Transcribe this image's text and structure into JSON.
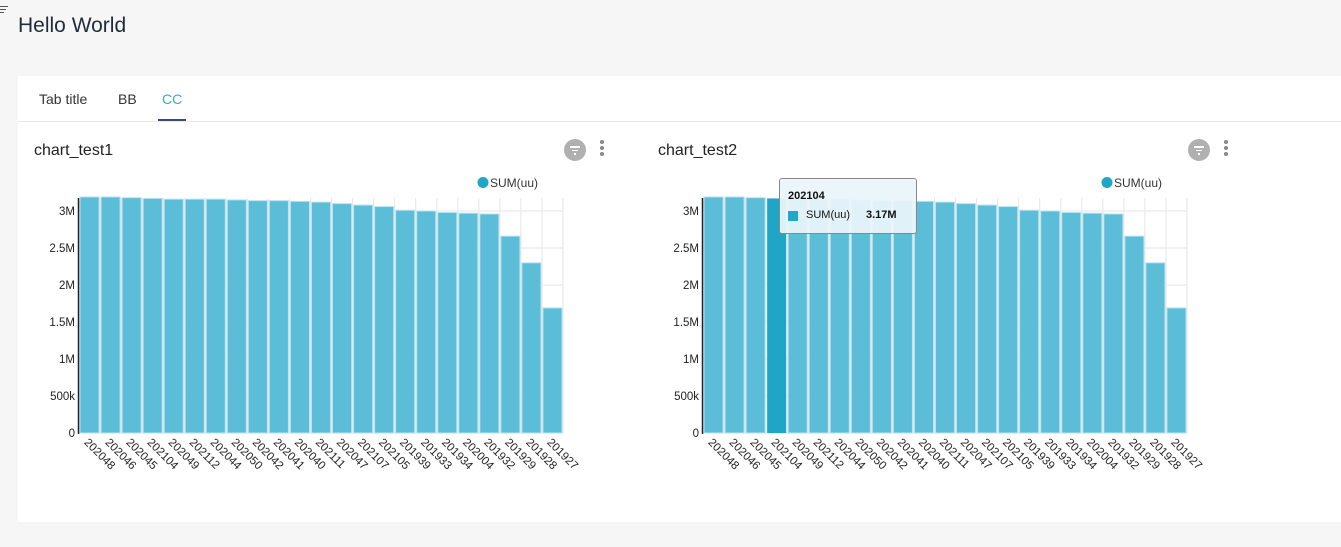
{
  "page": {
    "title": "Hello World"
  },
  "tabs": [
    {
      "label": "Tab title",
      "active": false
    },
    {
      "label": "BB",
      "active": false
    },
    {
      "label": "CC",
      "active": true
    }
  ],
  "colors": {
    "bar": "#5bbdd8",
    "bar_highlight": "#1fa6c7",
    "accent": "#3ea6c8",
    "legend_dot": "#1fa6c7"
  },
  "chart_data": [
    {
      "type": "bar",
      "title": "chart_test1",
      "legend": {
        "label": "SUM(uu)",
        "position": "top-right"
      },
      "categories": [
        "202048",
        "202046",
        "202045",
        "202104",
        "202049",
        "202112",
        "202044",
        "202050",
        "202042",
        "202041",
        "202040",
        "202111",
        "202047",
        "202107",
        "202105",
        "201939",
        "201933",
        "201934",
        "202004",
        "201932",
        "201929",
        "201928",
        "201927"
      ],
      "series": [
        {
          "name": "SUM(uu)",
          "values": [
            3190000,
            3190000,
            3180000,
            3170000,
            3160000,
            3160000,
            3160000,
            3150000,
            3140000,
            3140000,
            3130000,
            3120000,
            3100000,
            3080000,
            3060000,
            3010000,
            3000000,
            2980000,
            2970000,
            2960000,
            2660000,
            2300000,
            1690000
          ]
        }
      ],
      "ylim": [
        0,
        3200000
      ],
      "yticks": [
        {
          "value": 0,
          "label": "0"
        },
        {
          "value": 500000,
          "label": "500k"
        },
        {
          "value": 1000000,
          "label": "1M"
        },
        {
          "value": 1500000,
          "label": "1.5M"
        },
        {
          "value": 2000000,
          "label": "2M"
        },
        {
          "value": 2500000,
          "label": "2.5M"
        },
        {
          "value": 3000000,
          "label": "3M"
        }
      ],
      "xlabel": "",
      "ylabel": "",
      "grid": true
    },
    {
      "type": "bar",
      "title": "chart_test2",
      "legend": {
        "label": "SUM(uu)",
        "position": "top-right"
      },
      "categories": [
        "202048",
        "202046",
        "202045",
        "202104",
        "202049",
        "202112",
        "202044",
        "202050",
        "202042",
        "202041",
        "202040",
        "202111",
        "202047",
        "202107",
        "202105",
        "201939",
        "201933",
        "201934",
        "202004",
        "201932",
        "201929",
        "201928",
        "201927"
      ],
      "series": [
        {
          "name": "SUM(uu)",
          "values": [
            3190000,
            3190000,
            3180000,
            3170000,
            3160000,
            3160000,
            3160000,
            3150000,
            3140000,
            3140000,
            3130000,
            3120000,
            3100000,
            3080000,
            3060000,
            3010000,
            3000000,
            2980000,
            2970000,
            2960000,
            2660000,
            2300000,
            1690000
          ]
        }
      ],
      "ylim": [
        0,
        3200000
      ],
      "yticks": [
        {
          "value": 0,
          "label": "0"
        },
        {
          "value": 500000,
          "label": "500k"
        },
        {
          "value": 1000000,
          "label": "1M"
        },
        {
          "value": 1500000,
          "label": "1.5M"
        },
        {
          "value": 2000000,
          "label": "2M"
        },
        {
          "value": 2500000,
          "label": "2.5M"
        },
        {
          "value": 3000000,
          "label": "3M"
        }
      ],
      "xlabel": "",
      "ylabel": "",
      "grid": true,
      "highlight_index": 3,
      "tooltip": {
        "title": "202104",
        "label": "SUM(uu)",
        "value": "3.17M"
      }
    }
  ]
}
